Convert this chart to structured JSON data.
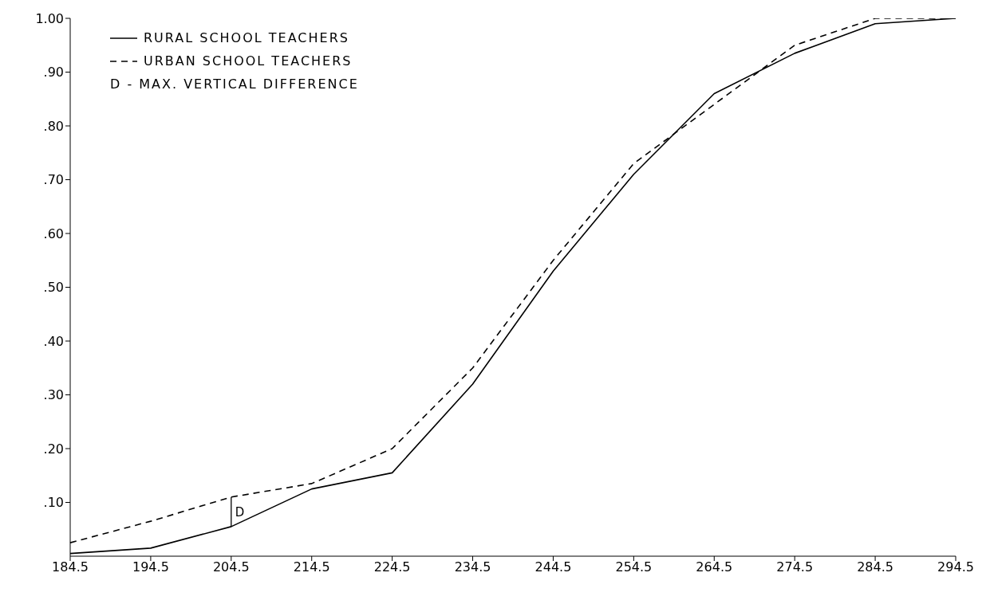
{
  "chart_data": {
    "type": "line",
    "categories": [
      "184.5",
      "194.5",
      "204.5",
      "214.5",
      "224.5",
      "234.5",
      "244.5",
      "254.5",
      "264.5",
      "274.5",
      "284.5",
      "294.5"
    ],
    "series": [
      {
        "name": "RURAL SCHOOL TEACHERS",
        "color": "#000000",
        "line_style": "solid",
        "values": [
          0.005,
          0.015,
          0.055,
          0.125,
          0.155,
          0.32,
          0.53,
          0.71,
          0.86,
          0.935,
          0.99,
          1.0
        ]
      },
      {
        "name": "URBAN SCHOOL TEACHERS",
        "color": "#000000",
        "line_style": "dashed",
        "values": [
          0.025,
          0.065,
          0.11,
          0.135,
          0.2,
          0.35,
          0.55,
          0.73,
          0.84,
          0.95,
          1.0,
          1.0
        ]
      }
    ],
    "ylim": [
      0,
      1.0
    ],
    "yticks": [
      {
        "value": 0.1,
        "label": ".10"
      },
      {
        "value": 0.2,
        "label": ".20"
      },
      {
        "value": 0.3,
        "label": ".30"
      },
      {
        "value": 0.4,
        "label": ".40"
      },
      {
        "value": 0.5,
        "label": ".50"
      },
      {
        "value": 0.6,
        "label": ".60"
      },
      {
        "value": 0.7,
        "label": ".70"
      },
      {
        "value": 0.8,
        "label": ".80"
      },
      {
        "value": 0.9,
        "label": ".90"
      },
      {
        "value": 1.0,
        "label": "1.00"
      }
    ],
    "annotations": [
      "D - MAX. VERTICAL DIFFERENCE",
      "D"
    ],
    "legend": "top left",
    "marker": "none"
  }
}
